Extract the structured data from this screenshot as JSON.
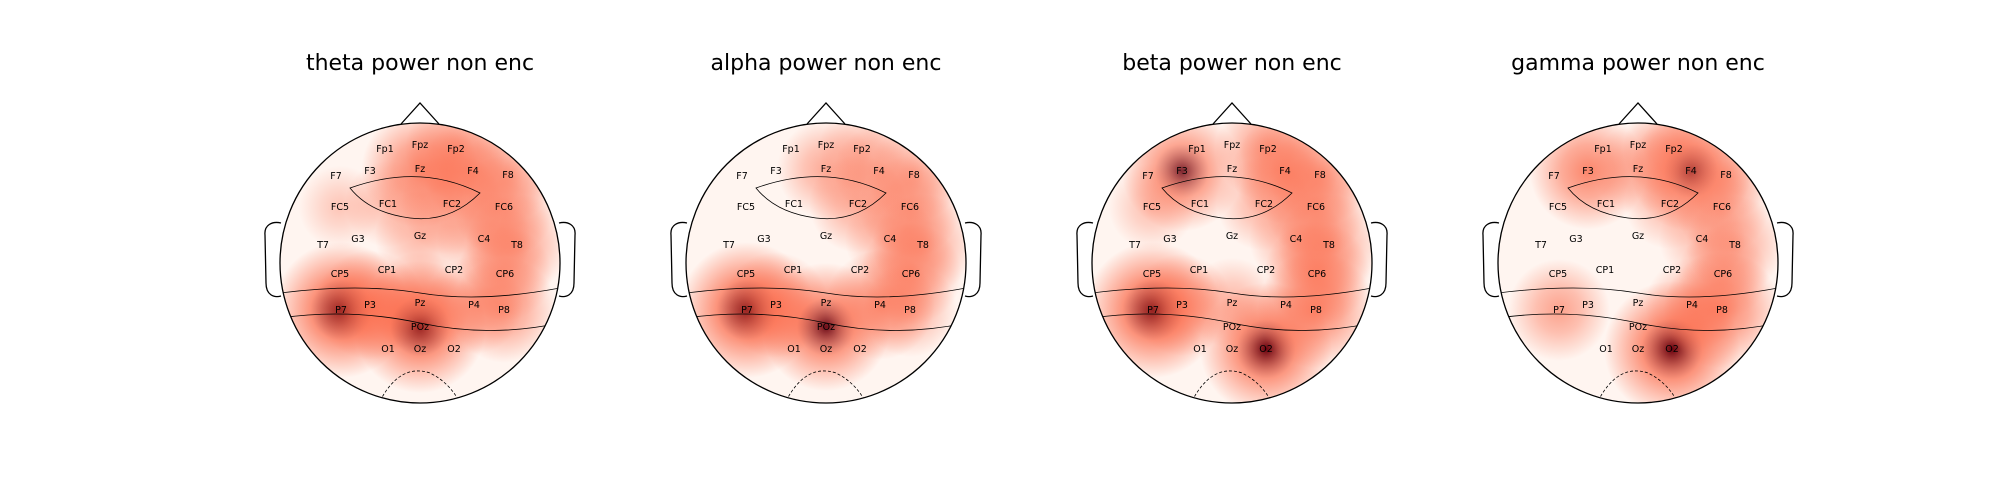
{
  "panels": [
    {
      "title": "theta power non enc",
      "hotspots": [
        {
          "ch": "P7",
          "v": 1.0
        },
        {
          "ch": "P3",
          "v": 0.65
        },
        {
          "ch": "POz",
          "v": 0.95
        },
        {
          "ch": "Pz",
          "v": 0.55
        },
        {
          "ch": "P8",
          "v": 0.6
        },
        {
          "ch": "Fz",
          "v": 0.75
        },
        {
          "ch": "Fp2",
          "v": 0.55
        },
        {
          "ch": "F4",
          "v": 0.55
        },
        {
          "ch": "FC2",
          "v": 0.55
        },
        {
          "ch": "FC6",
          "v": 0.55
        },
        {
          "ch": "T8",
          "v": 0.55
        },
        {
          "ch": "F8",
          "v": 0.45
        },
        {
          "ch": "FC1",
          "v": 0.35
        },
        {
          "ch": "Gz",
          "v": 0.4
        },
        {
          "ch": "C4",
          "v": 0.45
        },
        {
          "ch": "CP6",
          "v": 0.45
        },
        {
          "ch": "P4",
          "v": 0.5
        },
        {
          "ch": "FC5",
          "v": 0.3
        }
      ]
    },
    {
      "title": "alpha power non enc",
      "hotspots": [
        {
          "ch": "P7",
          "v": 1.0
        },
        {
          "ch": "P3",
          "v": 0.6
        },
        {
          "ch": "POz",
          "v": 0.9
        },
        {
          "ch": "P4",
          "v": 0.65
        },
        {
          "ch": "CP6",
          "v": 0.55
        },
        {
          "ch": "T8",
          "v": 0.55
        },
        {
          "ch": "Fz",
          "v": 0.5
        },
        {
          "ch": "FC2",
          "v": 0.5
        },
        {
          "ch": "FC6",
          "v": 0.55
        },
        {
          "ch": "F8",
          "v": 0.45
        },
        {
          "ch": "C4",
          "v": 0.4
        },
        {
          "ch": "P8",
          "v": 0.45
        },
        {
          "ch": "Fp2",
          "v": 0.35
        },
        {
          "ch": "F4",
          "v": 0.4
        }
      ]
    },
    {
      "title": "beta power non enc",
      "hotspots": [
        {
          "ch": "P7",
          "v": 1.0
        },
        {
          "ch": "P3",
          "v": 0.55
        },
        {
          "ch": "O2",
          "v": 0.95
        },
        {
          "ch": "P8",
          "v": 0.75
        },
        {
          "ch": "F3",
          "v": 0.8
        },
        {
          "ch": "Fp2",
          "v": 0.6
        },
        {
          "ch": "F4",
          "v": 0.6
        },
        {
          "ch": "F8",
          "v": 0.55
        },
        {
          "ch": "FC6",
          "v": 0.55
        },
        {
          "ch": "T8",
          "v": 0.55
        },
        {
          "ch": "CP6",
          "v": 0.6
        },
        {
          "ch": "FC2",
          "v": 0.45
        },
        {
          "ch": "C4",
          "v": 0.45
        },
        {
          "ch": "FC5",
          "v": 0.35
        },
        {
          "ch": "Pz",
          "v": 0.4
        }
      ]
    },
    {
      "title": "gamma power non enc",
      "hotspots": [
        {
          "ch": "O2",
          "v": 1.0
        },
        {
          "ch": "P8",
          "v": 0.75
        },
        {
          "ch": "F3",
          "v": 0.75
        },
        {
          "ch": "F4",
          "v": 0.8
        },
        {
          "ch": "Fp2",
          "v": 0.55
        },
        {
          "ch": "Fz",
          "v": 0.4
        },
        {
          "ch": "FC6",
          "v": 0.45
        },
        {
          "ch": "FC2",
          "v": 0.4
        },
        {
          "ch": "T8",
          "v": 0.5
        },
        {
          "ch": "P7",
          "v": 0.55
        },
        {
          "ch": "CP6",
          "v": 0.4
        },
        {
          "ch": "P4",
          "v": 0.45
        },
        {
          "ch": "C4",
          "v": 0.35
        },
        {
          "ch": "F8",
          "v": 0.4
        }
      ]
    }
  ],
  "colormap": {
    "low": "#fff5f0",
    "mid": "#fb6a4a",
    "high": "#67000d"
  },
  "electrodes": [
    "Fp1",
    "Fpz",
    "Fp2",
    "F7",
    "F3",
    "Fz",
    "F4",
    "F8",
    "FC5",
    "FC1",
    "FC2",
    "FC6",
    "T7",
    "G3",
    "Gz",
    "C4",
    "T8",
    "CP5",
    "CP1",
    "CP2",
    "CP6",
    "P7",
    "P3",
    "Pz",
    "P4",
    "P8",
    "POz",
    "O1",
    "Oz",
    "O2"
  ]
}
